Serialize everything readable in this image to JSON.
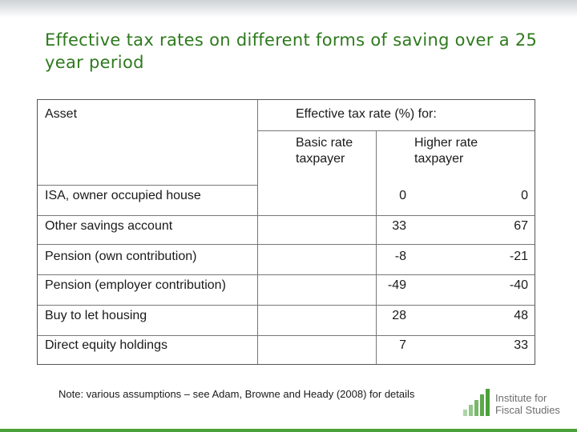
{
  "slide": {
    "title": "Effective tax rates on different forms of saving over a 25 year period"
  },
  "table": {
    "header": {
      "asset": "Asset",
      "group": "Effective tax rate (%) for:",
      "col_basic": "Basic rate taxpayer",
      "col_higher": "Higher rate taxpayer"
    },
    "rows": [
      {
        "asset": "ISA, owner occupied house",
        "basic": "0",
        "higher": "0"
      },
      {
        "asset": "Other savings account",
        "basic": "33",
        "higher": "67"
      },
      {
        "asset": "Pension (own contribution)",
        "basic": "-8",
        "higher": "-21"
      },
      {
        "asset": "Pension (employer contribution)",
        "basic": "-49",
        "higher": "-40"
      },
      {
        "asset": "Buy to let housing",
        "basic": "28",
        "higher": "48"
      },
      {
        "asset": "Direct equity holdings",
        "basic": "7",
        "higher": "33"
      }
    ]
  },
  "note": "Note: various assumptions – see Adam, Browne and Heady (2008) for details",
  "logo": {
    "text": "Institute for Fiscal Studies",
    "color": "#4aa03a"
  },
  "colors": {
    "title": "#2e7a1d",
    "accent": "#4aa03a"
  }
}
